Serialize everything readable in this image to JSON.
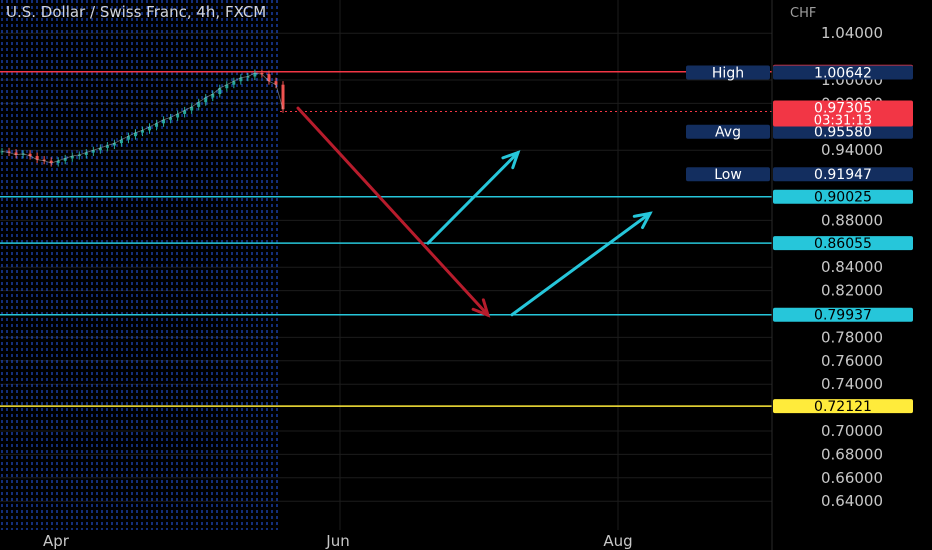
{
  "header": {
    "title": "U.S. Dollar / Swiss Franc, 4h, FXCM"
  },
  "chart_data": {
    "type": "line",
    "title": "U.S. Dollar / Swiss Franc, 4h, FXCM",
    "currency_label": "CHF",
    "y_range": [
      0.627,
      1.062
    ],
    "y_ticks": [
      "1.04000",
      "1.00000",
      "0.98000",
      "0.94000",
      "0.88000",
      "0.84000",
      "0.82000",
      "0.78000",
      "0.76000",
      "0.74000",
      "0.70000",
      "0.68000",
      "0.66000",
      "0.64000"
    ],
    "x_ticks": [
      "Apr",
      "Jun",
      "Aug"
    ],
    "price_series": {
      "name": "",
      "values": [
        0.939,
        0.938,
        0.936,
        0.937,
        0.935,
        0.932,
        0.931,
        0.929,
        0.931,
        0.933,
        0.935,
        0.936,
        0.938,
        0.94,
        0.942,
        0.944,
        0.946,
        0.949,
        0.952,
        0.955,
        0.957,
        0.96,
        0.963,
        0.966,
        0.968,
        0.971,
        0.974,
        0.977,
        0.981,
        0.985,
        0.988,
        0.993,
        0.996,
        0.999,
        1.002,
        1.003,
        1.006,
        1.005,
        0.999,
        0.996,
        0.975
      ]
    },
    "horizontal_levels": [
      {
        "label": "",
        "value": 1.00702,
        "text": "1.00702",
        "color": "#f23645"
      },
      {
        "label": "",
        "value": 0.90025,
        "text": "0.90025",
        "color": "#26c6da"
      },
      {
        "label": "",
        "value": 0.86055,
        "text": "0.86055",
        "color": "#26c6da"
      },
      {
        "label": "",
        "value": 0.79937,
        "text": "0.79937",
        "color": "#26c6da"
      },
      {
        "label": "",
        "value": 0.72121,
        "text": "0.72121",
        "color": "#ffeb3b"
      }
    ],
    "stat_labels": [
      {
        "label": "High",
        "value": 1.00642,
        "text": "1.00642"
      },
      {
        "label": "Avg",
        "value": 0.9558,
        "text": "0.95580"
      },
      {
        "label": "Low",
        "value": 0.91947,
        "text": "0.91947"
      }
    ],
    "current_price": {
      "text": "0.97305",
      "countdown": "03:31:13",
      "value": 0.97305,
      "color": "#f23645"
    },
    "drawn_arrows": [
      {
        "color": "#b71c2c",
        "from": 0.976,
        "to": 0.799
      },
      {
        "color": "#26c6da",
        "from": 0.86055,
        "to": 0.938
      },
      {
        "color": "#26c6da",
        "from": 0.79937,
        "to": 0.886
      }
    ],
    "colors": {
      "background": "#000000",
      "grid": "#1c1c1c",
      "vertical_lines": "#2962ff",
      "up": "#26a69a",
      "down": "#ef5350",
      "stat_label_bg": "#132e5f",
      "axis_text": "#c7c7c7"
    },
    "grid": true,
    "legend": "none"
  }
}
